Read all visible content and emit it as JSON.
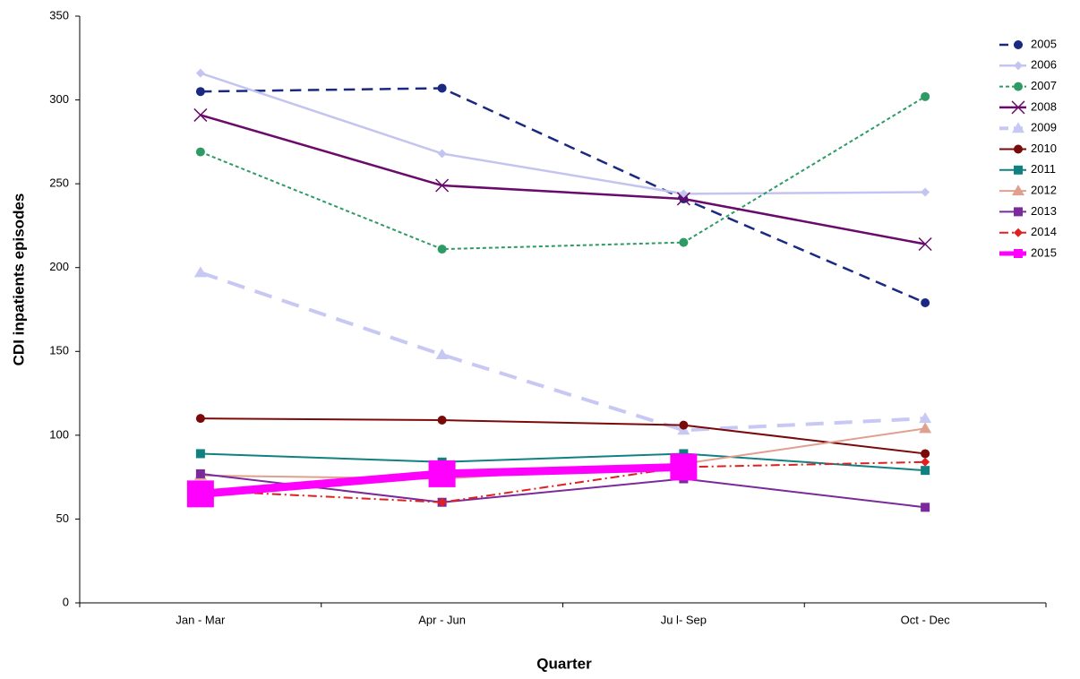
{
  "chart_data": {
    "type": "line",
    "x_label": "Quarter",
    "y_label": "CDI inpatients episodes",
    "categories": [
      "Jan - Mar",
      "Apr - Jun",
      "Ju l- Sep",
      "Oct - Dec"
    ],
    "ylim": [
      0,
      350
    ],
    "yticks": [
      0,
      50,
      100,
      150,
      200,
      250,
      300,
      350
    ],
    "grid": false,
    "legend": "upper right",
    "series": [
      {
        "name": "2005",
        "color": "#1a2a80",
        "line_style": "dashed",
        "line_width": 2.5,
        "marker": "circle",
        "values": [
          305,
          307,
          241,
          179
        ]
      },
      {
        "name": "2006",
        "color": "#c4c4f0",
        "line_style": "solid",
        "line_width": 2.5,
        "marker": "diamond",
        "values": [
          316,
          268,
          244,
          245
        ]
      },
      {
        "name": "2007",
        "color": "#2e9a64",
        "line_style": "dotted",
        "line_width": 2,
        "marker": "circle",
        "values": [
          269,
          211,
          215,
          302
        ]
      },
      {
        "name": "2008",
        "color": "#6a0a6a",
        "line_style": "solid",
        "line_width": 2.5,
        "marker": "x",
        "values": [
          291,
          249,
          241,
          214
        ]
      },
      {
        "name": "2009",
        "color": "#c8c8f4",
        "line_style": "dashed",
        "line_width": 4,
        "marker": "triangle",
        "values": [
          197,
          148,
          103,
          110
        ]
      },
      {
        "name": "2010",
        "color": "#7a0a0a",
        "line_style": "solid",
        "line_width": 2,
        "marker": "circle",
        "values": [
          110,
          109,
          106,
          89
        ]
      },
      {
        "name": "2011",
        "color": "#108080",
        "line_style": "solid",
        "line_width": 2,
        "marker": "square",
        "values": [
          89,
          84,
          89,
          79
        ]
      },
      {
        "name": "2012",
        "color": "#e0a090",
        "line_style": "solid",
        "line_width": 2,
        "marker": "triangle",
        "values": [
          76,
          74,
          83,
          104
        ]
      },
      {
        "name": "2013",
        "color": "#7a2a9a",
        "line_style": "solid",
        "line_width": 2,
        "marker": "square",
        "values": [
          77,
          60,
          74,
          57
        ]
      },
      {
        "name": "2014",
        "color": "#e02020",
        "line_style": "dashdot",
        "line_width": 2,
        "marker": "diamond",
        "values": [
          67,
          60,
          81,
          84
        ]
      },
      {
        "name": "2015",
        "color": "#ff00ff",
        "line_style": "solid",
        "line_width": 9,
        "marker": "bigsquare",
        "values": [
          65,
          77,
          81,
          null
        ]
      }
    ]
  }
}
